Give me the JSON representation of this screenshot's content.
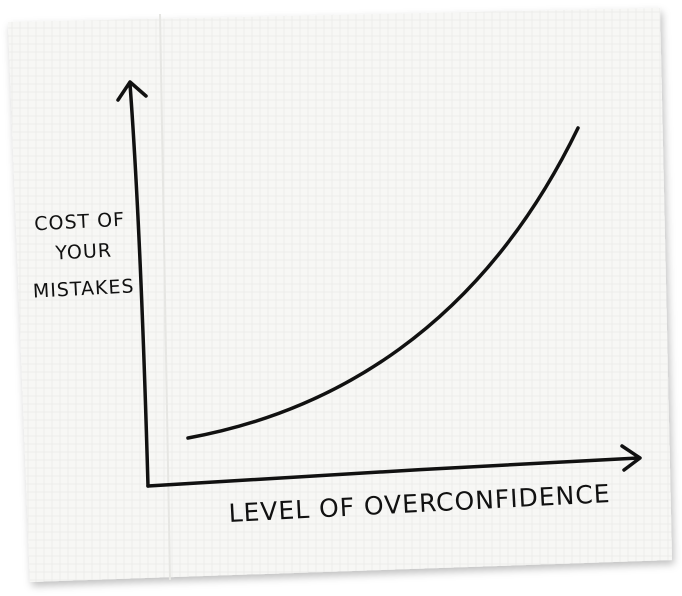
{
  "y_axis_label": [
    "COST OF",
    "YOUR",
    "MISTAKES"
  ],
  "x_axis_label": "LEVEL OF OVERCONFIDENCE"
}
